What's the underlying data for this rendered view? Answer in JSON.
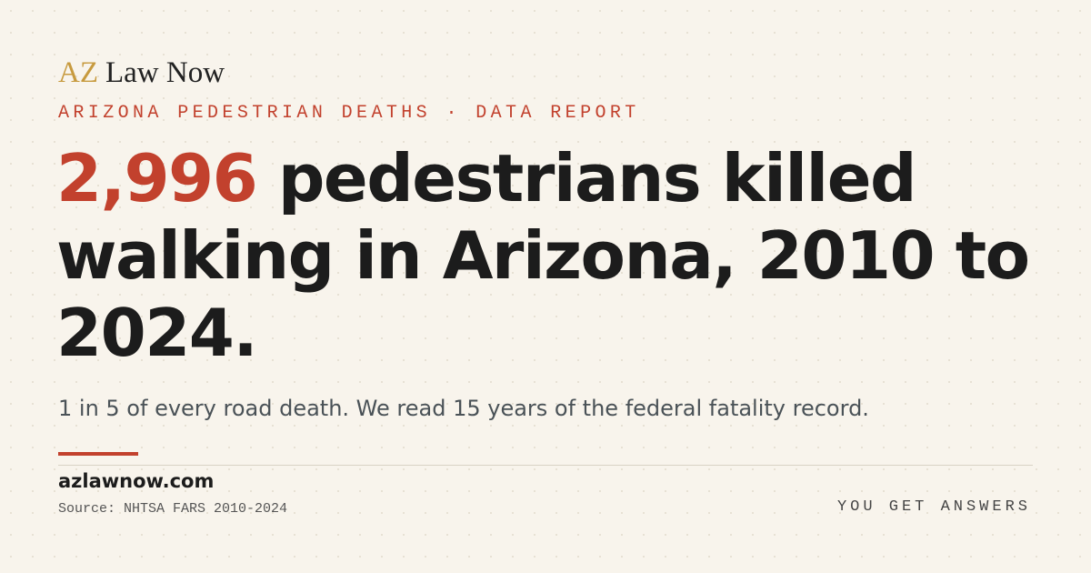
{
  "brand": {
    "mark": "AZ",
    "name": "Law Now"
  },
  "kicker": "ARIZONA PEDESTRIAN DEATHS · DATA REPORT",
  "headline": {
    "highlight": "2,996",
    "lines": [
      "pedestrians killed",
      "walking in Arizona, 2010 to",
      "2024."
    ]
  },
  "subtitle": "1 in 5 of every road death. We read 15 years of the federal fatality record.",
  "footer": {
    "site": "azlawnow.com",
    "source": "Source: NHTSA FARS 2010-2024",
    "tagline": "YOU GET ANSWERS"
  }
}
